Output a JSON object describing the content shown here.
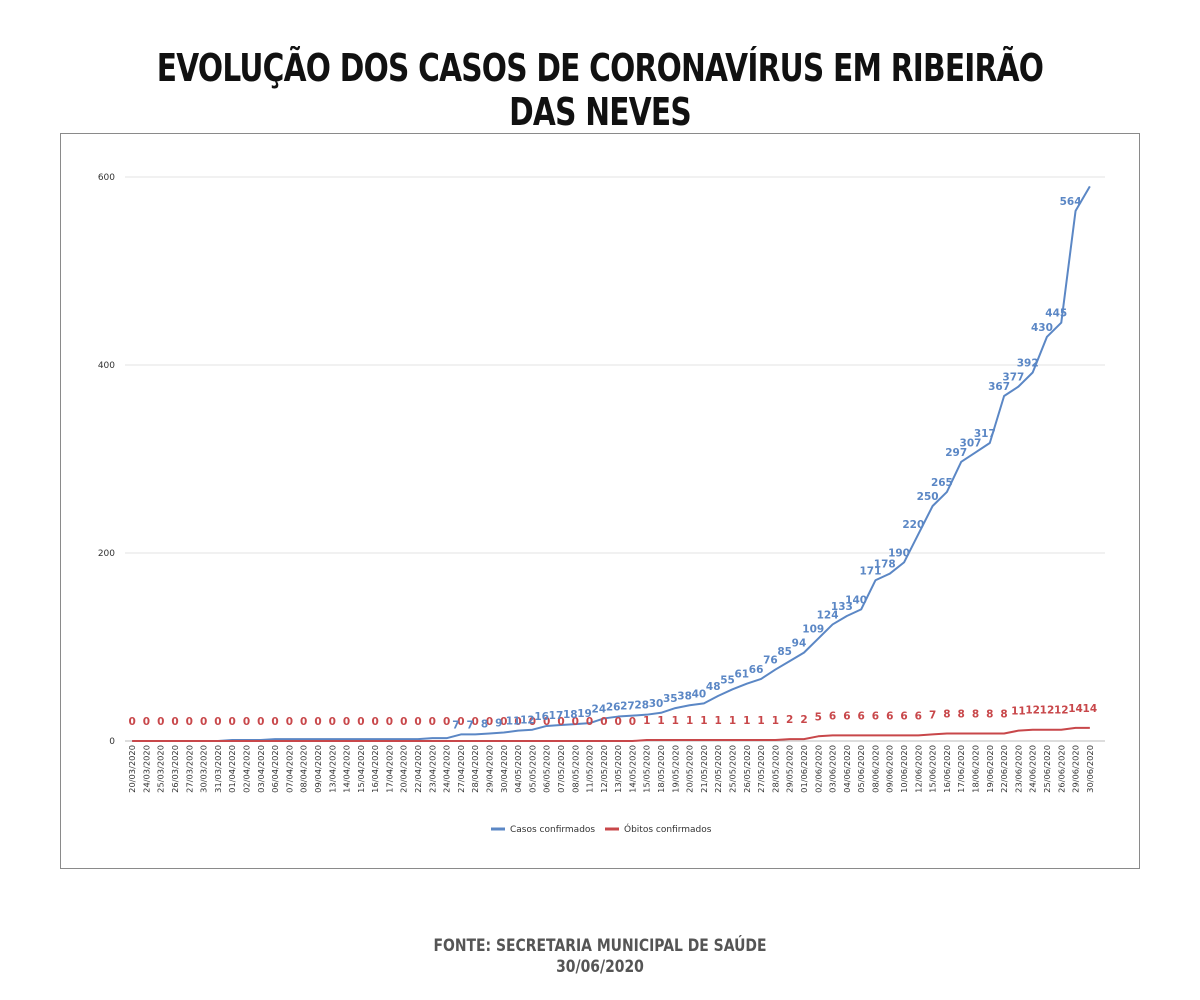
{
  "title": "EVOLUÇÃO DOS CASOS DE CORONAVÍRUS EM RIBEIRÃO DAS NEVES",
  "source": {
    "line1": "FONTE: SECRETARIA MUNICIPAL DE SAÚDE",
    "line2": "30/06/2020"
  },
  "colors": {
    "casos": "#5b87c5",
    "obitos": "#c8474a",
    "grid": "#e3e3e3",
    "axis_text": "#333333"
  },
  "chart_data": {
    "type": "line",
    "ylim": [
      0,
      600
    ],
    "yticks": [
      0,
      200,
      400,
      600
    ],
    "grid": true,
    "legend_position": "bottom",
    "categories": [
      "20/03/2020",
      "24/03/2020",
      "25/03/2020",
      "26/03/2020",
      "27/03/2020",
      "30/03/2020",
      "31/03/2020",
      "01/04/2020",
      "02/04/2020",
      "03/04/2020",
      "06/04/2020",
      "07/04/2020",
      "08/04/2020",
      "09/04/2020",
      "13/04/2020",
      "14/04/2020",
      "15/04/2020",
      "16/04/2020",
      "17/04/2020",
      "20/04/2020",
      "22/04/2020",
      "23/04/2020",
      "24/04/2020",
      "27/04/2020",
      "28/04/2020",
      "29/04/2020",
      "30/04/2020",
      "04/05/2020",
      "05/05/2020",
      "06/05/2020",
      "07/05/2020",
      "08/05/2020",
      "11/05/2020",
      "12/05/2020",
      "13/05/2020",
      "14/05/2020",
      "15/05/2020",
      "18/05/2020",
      "19/05/2020",
      "20/05/2020",
      "21/05/2020",
      "22/05/2020",
      "25/05/2020",
      "26/05/2020",
      "27/05/2020",
      "28/05/2020",
      "29/05/2020",
      "01/06/2020",
      "02/06/2020",
      "03/06/2020",
      "04/06/2020",
      "05/06/2020",
      "08/06/2020",
      "09/06/2020",
      "10/06/2020",
      "12/06/2020",
      "15/06/2020",
      "16/06/2020",
      "17/06/2020",
      "18/06/2020",
      "19/06/2020",
      "22/06/2020",
      "23/06/2020",
      "24/06/2020",
      "25/06/2020",
      "26/06/2020",
      "29/06/2020",
      "30/06/2020"
    ],
    "series": [
      {
        "name": "Casos confirmados",
        "values": [
          0,
          0,
          0,
          0,
          0,
          0,
          0,
          1,
          1,
          1,
          2,
          2,
          2,
          2,
          2,
          2,
          2,
          2,
          2,
          2,
          2,
          3,
          3,
          7,
          7,
          8,
          9,
          11,
          12,
          16,
          17,
          18,
          19,
          24,
          26,
          27,
          28,
          30,
          35,
          38,
          40,
          48,
          55,
          61,
          66,
          76,
          85,
          94,
          109,
          124,
          133,
          140,
          171,
          178,
          190,
          220,
          250,
          265,
          297,
          307,
          317,
          367,
          377,
          392,
          430,
          445,
          564,
          590
        ],
        "labels": [
          "",
          "",
          "",
          "",
          "",
          "",
          "",
          "",
          "",
          "",
          "",
          "",
          "",
          "",
          "",
          "",
          "",
          "",
          "",
          "",
          "",
          "",
          "",
          "7",
          "7",
          "8",
          "9",
          "11",
          "12",
          "16",
          "17",
          "18",
          "19",
          "24",
          "26",
          "27",
          "28",
          "30",
          "35",
          "38",
          "40",
          "48",
          "55",
          "61",
          "66",
          "76",
          "85",
          "94",
          "109",
          "124",
          "133",
          "140",
          "171",
          "178",
          "190",
          "220",
          "250",
          "265",
          "297",
          "307",
          "317",
          "367",
          "377",
          "392",
          "430",
          "445",
          "564",
          ""
        ]
      },
      {
        "name": "Óbitos confirmados",
        "values": [
          0,
          0,
          0,
          0,
          0,
          0,
          0,
          0,
          0,
          0,
          0,
          0,
          0,
          0,
          0,
          0,
          0,
          0,
          0,
          0,
          0,
          0,
          0,
          0,
          0,
          0,
          0,
          0,
          0,
          0,
          0,
          0,
          0,
          0,
          0,
          0,
          1,
          1,
          1,
          1,
          1,
          1,
          1,
          1,
          1,
          1,
          2,
          2,
          5,
          6,
          6,
          6,
          6,
          6,
          6,
          6,
          7,
          8,
          8,
          8,
          8,
          8,
          11,
          12,
          12,
          12,
          14,
          14
        ],
        "labels": [
          "0",
          "0",
          "0",
          "0",
          "0",
          "0",
          "0",
          "0",
          "0",
          "0",
          "0",
          "0",
          "0",
          "0",
          "0",
          "0",
          "0",
          "0",
          "0",
          "0",
          "0",
          "0",
          "0",
          "0",
          "0",
          "0",
          "0",
          "0",
          "0",
          "0",
          "0",
          "0",
          "0",
          "0",
          "0",
          "0",
          "1",
          "1",
          "1",
          "1",
          "1",
          "1",
          "1",
          "1",
          "1",
          "1",
          "2",
          "2",
          "5",
          "6",
          "6",
          "6",
          "6",
          "6",
          "6",
          "6",
          "7",
          "8",
          "8",
          "8",
          "8",
          "8",
          "11",
          "12",
          "12",
          "12",
          "14",
          "14"
        ]
      }
    ]
  }
}
